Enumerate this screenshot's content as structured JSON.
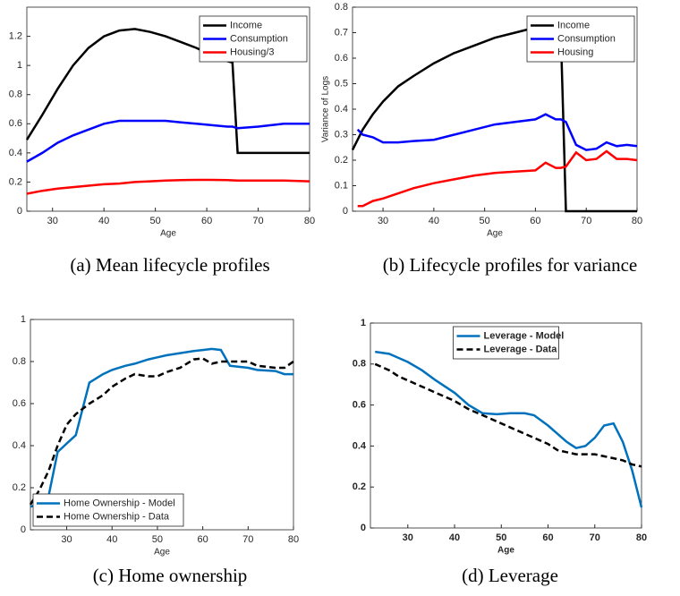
{
  "chart_data": [
    {
      "type": "line",
      "caption": "(a) Mean lifecycle profiles",
      "xlabel": "Age",
      "xlim": [
        25,
        80
      ],
      "ylim": [
        0,
        1.4
      ],
      "xticks": [
        30,
        40,
        50,
        60,
        70,
        80
      ],
      "yticks": [
        0,
        0.2,
        0.4,
        0.6,
        0.8,
        1,
        1.2
      ],
      "legend": "upper right",
      "bold": false,
      "x": [
        25,
        28,
        31,
        34,
        37,
        40,
        43,
        46,
        49,
        52,
        55,
        58,
        61,
        64,
        65,
        66,
        70,
        75,
        80
      ],
      "series": [
        {
          "name": "Income",
          "color": "#000000",
          "style": "solid",
          "values": [
            0.49,
            0.66,
            0.84,
            1.0,
            1.12,
            1.2,
            1.24,
            1.25,
            1.23,
            1.2,
            1.16,
            1.12,
            1.07,
            1.03,
            1.02,
            0.4,
            0.4,
            0.4,
            0.4
          ]
        },
        {
          "name": "Consumption",
          "color": "#0000ff",
          "style": "solid",
          "values": [
            0.34,
            0.4,
            0.47,
            0.52,
            0.56,
            0.6,
            0.62,
            0.62,
            0.62,
            0.62,
            0.61,
            0.6,
            0.59,
            0.58,
            0.58,
            0.57,
            0.58,
            0.6,
            0.6
          ]
        },
        {
          "name": "Housing/3",
          "color": "#ff0000",
          "style": "solid",
          "values": [
            0.12,
            0.14,
            0.155,
            0.165,
            0.175,
            0.185,
            0.19,
            0.2,
            0.205,
            0.21,
            0.213,
            0.215,
            0.215,
            0.213,
            0.212,
            0.21,
            0.21,
            0.21,
            0.205
          ]
        }
      ]
    },
    {
      "type": "line",
      "caption": "(b) Lifecycle profiles for variance",
      "xlabel": "Age",
      "ylabel": "Variance of Logs",
      "xlim": [
        24,
        80
      ],
      "ylim": [
        0,
        0.8
      ],
      "xticks": [
        30,
        40,
        50,
        60,
        70,
        80
      ],
      "yticks": [
        0,
        0.1,
        0.2,
        0.3,
        0.4,
        0.5,
        0.6,
        0.7,
        0.8
      ],
      "legend": "upper right",
      "bold": false,
      "x": [
        24,
        25,
        26,
        28,
        30,
        33,
        36,
        40,
        44,
        48,
        52,
        56,
        60,
        62,
        64,
        65,
        66,
        68,
        70,
        72,
        74,
        76,
        78,
        80
      ],
      "series": [
        {
          "name": "Income",
          "color": "#000000",
          "style": "solid",
          "values": [
            0.24,
            0.28,
            0.32,
            0.38,
            0.43,
            0.49,
            0.53,
            0.58,
            0.62,
            0.65,
            0.68,
            0.7,
            0.72,
            0.72,
            0.71,
            0.7,
            0,
            0,
            0,
            0,
            0,
            0,
            0,
            0
          ]
        },
        {
          "name": "Consumption",
          "color": "#0000ff",
          "style": "solid",
          "values": [
            null,
            0.32,
            0.3,
            0.29,
            0.27,
            0.27,
            0.275,
            0.28,
            0.3,
            0.32,
            0.34,
            0.35,
            0.36,
            0.38,
            0.36,
            0.36,
            0.35,
            0.26,
            0.24,
            0.245,
            0.27,
            0.255,
            0.26,
            0.255
          ]
        },
        {
          "name": "Housing",
          "color": "#ff0000",
          "style": "solid",
          "values": [
            null,
            0.02,
            0.02,
            0.04,
            0.05,
            0.07,
            0.09,
            0.11,
            0.125,
            0.14,
            0.15,
            0.155,
            0.16,
            0.19,
            0.17,
            0.17,
            0.175,
            0.23,
            0.2,
            0.205,
            0.235,
            0.205,
            0.205,
            0.2
          ]
        }
      ]
    },
    {
      "type": "line",
      "caption": "(c) Home ownership",
      "xlabel": "Age",
      "xlim": [
        22,
        80
      ],
      "ylim": [
        0,
        1
      ],
      "xticks": [
        30,
        40,
        50,
        60,
        70,
        80
      ],
      "yticks": [
        0,
        0.2,
        0.4,
        0.6,
        0.8,
        1
      ],
      "legend": "lower left",
      "bold": false,
      "x": [
        22,
        24,
        26,
        28,
        30,
        32,
        35,
        38,
        40,
        43,
        45,
        48,
        50,
        52,
        55,
        58,
        60,
        62,
        64,
        66,
        68,
        70,
        72,
        76,
        78,
        80
      ],
      "series": [
        {
          "name": "Home Ownership - Model",
          "color": "#0072bd",
          "style": "solid",
          "values": [
            0.11,
            0.12,
            0.16,
            0.37,
            0.41,
            0.45,
            0.7,
            0.74,
            0.76,
            0.78,
            0.79,
            0.81,
            0.82,
            0.83,
            0.84,
            0.85,
            0.855,
            0.86,
            0.855,
            0.78,
            0.775,
            0.77,
            0.76,
            0.755,
            0.74,
            0.74
          ]
        },
        {
          "name": "Home Ownership - Data",
          "color": "#000000",
          "style": "dashed",
          "values": [
            0.12,
            0.19,
            0.28,
            0.4,
            0.5,
            0.55,
            0.6,
            0.64,
            0.68,
            0.72,
            0.74,
            0.73,
            0.73,
            0.75,
            0.77,
            0.81,
            0.815,
            0.79,
            0.8,
            0.8,
            0.8,
            0.8,
            0.78,
            0.77,
            0.77,
            0.8
          ]
        }
      ]
    },
    {
      "type": "line",
      "caption": "(d) Leverage",
      "xlabel": "Age",
      "xlim": [
        22,
        80
      ],
      "ylim": [
        0,
        1
      ],
      "xticks": [
        30,
        40,
        50,
        60,
        70,
        80
      ],
      "yticks": [
        0,
        0.2,
        0.4,
        0.6,
        0.8,
        1
      ],
      "legend": "upper center",
      "bold": true,
      "x": [
        23,
        26,
        28,
        30,
        33,
        36,
        40,
        43,
        46,
        49,
        52,
        55,
        57,
        60,
        62,
        64,
        66,
        68,
        70,
        72,
        74,
        76,
        78,
        80
      ],
      "series": [
        {
          "name": "Leverage - Model",
          "color": "#0072bd",
          "style": "solid",
          "values": [
            0.86,
            0.85,
            0.83,
            0.81,
            0.77,
            0.72,
            0.66,
            0.6,
            0.56,
            0.555,
            0.56,
            0.56,
            0.55,
            0.5,
            0.46,
            0.42,
            0.39,
            0.4,
            0.44,
            0.5,
            0.51,
            0.42,
            0.28,
            0.1
          ]
        },
        {
          "name": "Leverage - Data",
          "color": "#000000",
          "style": "dashed",
          "values": [
            0.8,
            0.77,
            0.74,
            0.72,
            0.69,
            0.66,
            0.62,
            0.58,
            0.55,
            0.52,
            0.49,
            0.46,
            0.44,
            0.41,
            0.38,
            0.37,
            0.36,
            0.36,
            0.36,
            0.35,
            0.34,
            0.33,
            0.31,
            0.3
          ]
        }
      ]
    }
  ]
}
